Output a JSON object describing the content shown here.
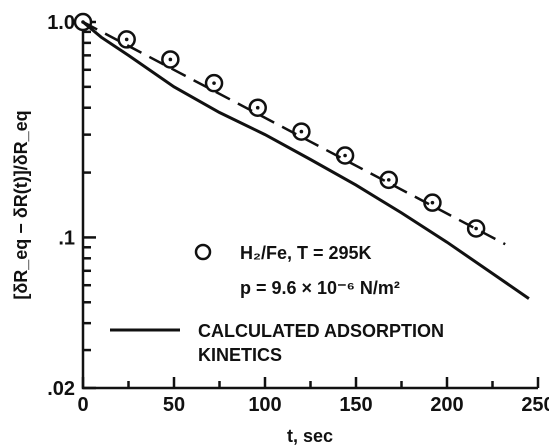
{
  "chart_data": {
    "type": "line",
    "xlabel": "t, sec",
    "ylabel": "[δR_eq − δR(t)]/δR_eq",
    "xlim": [
      0,
      250
    ],
    "ylim": [
      0.02,
      1.0
    ],
    "yscale": "log",
    "xticks": [
      0,
      50,
      100,
      150,
      200,
      250
    ],
    "xtick_labels": [
      "0",
      "50",
      "100",
      "150",
      "200",
      "250"
    ],
    "yticks": [
      0.02,
      0.1,
      1.0
    ],
    "ytick_labels": [
      ".02",
      ".1",
      "1.0"
    ],
    "grid": false,
    "legend_position": "lower-center",
    "series": [
      {
        "name": "H₂/Fe, T = 295K",
        "name_line2": "p = 9.6 × 10⁻⁶ N/m²",
        "style": "markers",
        "marker": "open-circle-with-dot",
        "x": [
          0,
          24,
          48,
          72,
          96,
          120,
          144,
          168,
          192,
          216
        ],
        "y": [
          1.0,
          0.83,
          0.67,
          0.52,
          0.4,
          0.31,
          0.24,
          0.185,
          0.145,
          0.11
        ]
      },
      {
        "name": "fit",
        "style": "dashed",
        "x": [
          0,
          232
        ],
        "y": [
          1.0,
          0.093
        ]
      },
      {
        "name": "CALCULATED ADSORPTION",
        "name_line2": "KINETICS",
        "style": "solid",
        "x": [
          0,
          10,
          25,
          50,
          75,
          100,
          125,
          150,
          175,
          200,
          225,
          245
        ],
        "y": [
          1.0,
          0.85,
          0.7,
          0.5,
          0.38,
          0.3,
          0.23,
          0.175,
          0.13,
          0.095,
          0.068,
          0.052
        ]
      }
    ]
  }
}
